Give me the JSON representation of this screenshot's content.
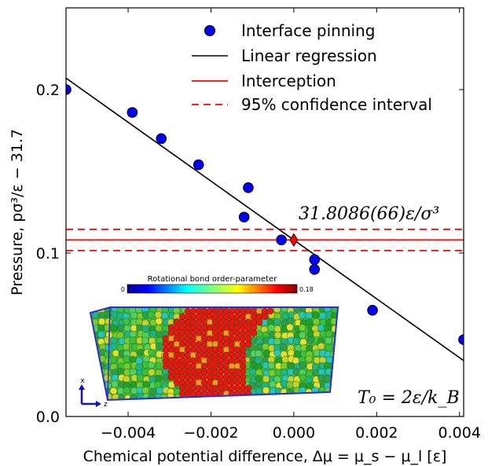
{
  "chart_data": {
    "type": "scatter",
    "xlabel": "Chemical potential difference, Δμ = μ_s − μ_l [ε]",
    "ylabel": "Pressure, pσ³/ε − 31.7",
    "xlim": [
      -0.0055,
      0.0041
    ],
    "ylim": [
      0.0,
      0.25
    ],
    "x_ticks": [
      -0.004,
      -0.002,
      0.0,
      0.002,
      0.004
    ],
    "x_tick_labels": [
      "−0.004",
      "−0.002",
      "0.000",
      "0.002",
      "0.004"
    ],
    "y_ticks": [
      0.0,
      0.1,
      0.2
    ],
    "y_tick_labels": [
      "0.0",
      "0.1",
      "0.2"
    ],
    "grid": false,
    "legend_position": "top-right",
    "legend": [
      {
        "label": "Interface pinning",
        "style": "marker",
        "color": "#0000ff"
      },
      {
        "label": "Linear regression",
        "style": "solid",
        "color": "#000000"
      },
      {
        "label": "Interception",
        "style": "solid",
        "color": "#ff0000"
      },
      {
        "label": "95% confidence interval",
        "style": "dashed",
        "color": "#ff0000"
      }
    ],
    "series": [
      {
        "name": "Interface pinning",
        "x": [
          -0.0055,
          -0.0039,
          -0.0032,
          -0.0023,
          -0.0011,
          -0.0012,
          -0.0003,
          0.0005,
          0.0005,
          0.0019,
          0.0041
        ],
        "y": [
          0.2,
          0.186,
          0.17,
          0.154,
          0.14,
          0.122,
          0.108,
          0.096,
          0.09,
          0.065,
          0.047
        ]
      }
    ],
    "regression": {
      "slope": -18.0,
      "intercept": 0.108,
      "color": "#000000"
    },
    "interception": {
      "x": 0.0,
      "y": 0.108,
      "color": "#ff0000"
    },
    "confidence_interval": {
      "lower": 0.1015,
      "upper": 0.1145,
      "color": "#ff0000"
    },
    "annotation_value": "31.8086(66)ε/σ³",
    "annotation_temperature": "T₀ = 2ε/k_B"
  },
  "inset": {
    "colorbar_title": "Rotational bond order-parameter",
    "colorbar_min": "0",
    "colorbar_max": "0.18",
    "axis_x": "x",
    "axis_z": "z"
  }
}
